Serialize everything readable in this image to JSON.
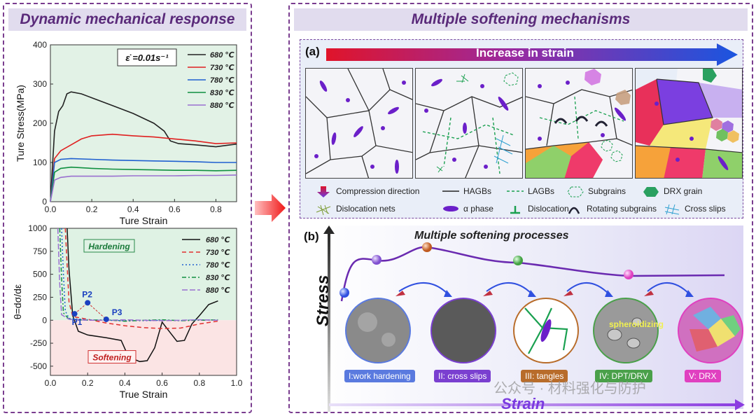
{
  "left_panel": {
    "title": "Dynamic mechanical response"
  },
  "right_panel": {
    "title": "Multiple softening mechanisms"
  },
  "top_chart": {
    "type": "line",
    "xlabel": "Ture Strain",
    "ylabel": "Ture Stress(MPa)",
    "xlim": [
      0.0,
      0.9
    ],
    "ylim": [
      0,
      400
    ],
    "x_ticks": [
      "0.0",
      "0.2",
      "0.4",
      "0.6",
      "0.8"
    ],
    "y_ticks": [
      "0",
      "100",
      "200",
      "300",
      "400"
    ],
    "rate_label": "ε̇ =0.01s⁻¹",
    "series": [
      {
        "name": "680 ℃",
        "color": "#222222",
        "x": [
          0,
          0.02,
          0.04,
          0.06,
          0.08,
          0.1,
          0.15,
          0.2,
          0.3,
          0.4,
          0.5,
          0.55,
          0.58,
          0.62,
          0.7,
          0.8,
          0.9
        ],
        "y": [
          0,
          180,
          230,
          245,
          275,
          280,
          275,
          265,
          245,
          225,
          200,
          180,
          155,
          148,
          145,
          140,
          147
        ]
      },
      {
        "name": "730 ℃",
        "color": "#e02020",
        "x": [
          0,
          0.02,
          0.05,
          0.1,
          0.15,
          0.2,
          0.25,
          0.3,
          0.4,
          0.5,
          0.6,
          0.7,
          0.8,
          0.9
        ],
        "y": [
          0,
          110,
          130,
          145,
          160,
          168,
          170,
          172,
          168,
          165,
          160,
          155,
          148,
          150
        ]
      },
      {
        "name": "780 ℃",
        "color": "#2060d0",
        "x": [
          0,
          0.02,
          0.05,
          0.1,
          0.2,
          0.3,
          0.4,
          0.5,
          0.6,
          0.7,
          0.8,
          0.9
        ],
        "y": [
          0,
          100,
          108,
          110,
          108,
          106,
          105,
          104,
          103,
          102,
          100,
          100
        ]
      },
      {
        "name": "830 ℃",
        "color": "#109040",
        "x": [
          0,
          0.02,
          0.05,
          0.1,
          0.2,
          0.3,
          0.4,
          0.5,
          0.6,
          0.7,
          0.8,
          0.9
        ],
        "y": [
          0,
          75,
          85,
          88,
          85,
          83,
          82,
          81,
          80,
          80,
          79,
          80
        ]
      },
      {
        "name": "880 ℃",
        "color": "#9a70d0",
        "x": [
          0,
          0.02,
          0.05,
          0.1,
          0.2,
          0.3,
          0.4,
          0.5,
          0.6,
          0.7,
          0.8,
          0.9
        ],
        "y": [
          0,
          55,
          62,
          65,
          65,
          65,
          66,
          66,
          66,
          67,
          67,
          68
        ]
      }
    ]
  },
  "bottom_chart": {
    "type": "line",
    "xlabel": "True Strain",
    "ylabel": "θ=dσ/dε",
    "xlim": [
      0.0,
      1.0
    ],
    "ylim": [
      -600,
      1000
    ],
    "x_ticks": [
      "0.0",
      "0.2",
      "0.4",
      "0.6",
      "0.8",
      "1.0"
    ],
    "y_ticks": [
      "-500",
      "-250",
      "0",
      "250",
      "500",
      "750",
      "1000"
    ],
    "hardening_label": "Hardening",
    "softening_label": "Softening",
    "points": [
      {
        "label": "P1",
        "x": 0.13,
        "y": 70
      },
      {
        "label": "P2",
        "x": 0.2,
        "y": 190
      },
      {
        "label": "P3",
        "x": 0.3,
        "y": 10
      }
    ],
    "series": [
      {
        "name": "680 ℃",
        "color": "#111111",
        "x": [
          0.09,
          0.1,
          0.12,
          0.15,
          0.2,
          0.3,
          0.38,
          0.42,
          0.48,
          0.52,
          0.56,
          0.6,
          0.63,
          0.68,
          0.72,
          0.76,
          0.8,
          0.85,
          0.9
        ],
        "y": [
          1000,
          550,
          50,
          -120,
          -160,
          -190,
          -220,
          -400,
          -450,
          -440,
          -300,
          -20,
          -100,
          -230,
          -220,
          -40,
          50,
          170,
          210
        ]
      },
      {
        "name": "730 ℃",
        "color": "#e03030",
        "x": [
          0.08,
          0.09,
          0.1,
          0.12,
          0.2,
          0.3,
          0.4,
          0.5,
          0.6,
          0.7,
          0.8,
          0.9
        ],
        "y": [
          1000,
          600,
          200,
          40,
          10,
          -30,
          -60,
          -80,
          -90,
          -85,
          -40,
          -10
        ]
      },
      {
        "name": "780 ℃",
        "color": "#2060d0",
        "x": [
          0.06,
          0.07,
          0.08,
          0.1,
          0.2,
          0.3,
          0.4,
          0.5,
          0.6,
          0.7,
          0.8,
          0.9
        ],
        "y": [
          1000,
          500,
          100,
          20,
          5,
          0,
          -5,
          -5,
          0,
          -5,
          5,
          0
        ]
      },
      {
        "name": "830 ℃",
        "color": "#109040",
        "x": [
          0.05,
          0.06,
          0.07,
          0.1,
          0.2,
          0.3,
          0.4,
          0.5,
          0.6,
          0.7,
          0.8,
          0.9
        ],
        "y": [
          1000,
          450,
          80,
          10,
          0,
          5,
          -10,
          0,
          5,
          -5,
          0,
          5
        ]
      },
      {
        "name": "880 ℃",
        "color": "#9a70d0",
        "x": [
          0.04,
          0.05,
          0.06,
          0.1,
          0.2,
          0.3,
          0.4,
          0.5,
          0.6,
          0.7,
          0.8,
          0.9
        ],
        "y": [
          1000,
          400,
          60,
          10,
          0,
          0,
          5,
          0,
          -5,
          0,
          5,
          0
        ]
      }
    ]
  },
  "panel_a": {
    "label": "(a)",
    "arrow_text": "Increase in strain",
    "legend": [
      {
        "key": "compression",
        "text": "Compression direction"
      },
      {
        "key": "hagbs",
        "text": "HAGBs"
      },
      {
        "key": "lagbs",
        "text": "LAGBs"
      },
      {
        "key": "subgrains",
        "text": "Subgrains"
      },
      {
        "key": "drx",
        "text": "DRX grain"
      },
      {
        "key": "dislocation_nets",
        "text": "Dislocation nets"
      },
      {
        "key": "alpha",
        "text": "α phase"
      },
      {
        "key": "dislocation",
        "text": "Dislocation"
      },
      {
        "key": "rotating",
        "text": "Rotating subgrains"
      },
      {
        "key": "crossslips",
        "text": "Cross slips"
      }
    ]
  },
  "panel_b": {
    "label": "(b)",
    "title": "Multiple softening processes",
    "y_axis": "Stress",
    "x_axis": "Strain",
    "stages": [
      {
        "label": "I:work hardening",
        "color": "#5a7adf"
      },
      {
        "label": "II: cross slips",
        "color": "#7a3fd0"
      },
      {
        "label": "III: tangles",
        "color": "#b86c2a"
      },
      {
        "label": "IV: DPT/DRV",
        "color": "#4aa04a"
      },
      {
        "label": "V: DRX",
        "color": "#e040c0"
      }
    ],
    "spheroidizing": "spheroidizing",
    "watermark": "公众号 · 材料强化与防护"
  },
  "colors": {
    "header_bg": "#e1dcee",
    "title_color": "#5a2a7a",
    "alpha_phase": "#6b1fc9",
    "border": "#7a3d8f"
  }
}
